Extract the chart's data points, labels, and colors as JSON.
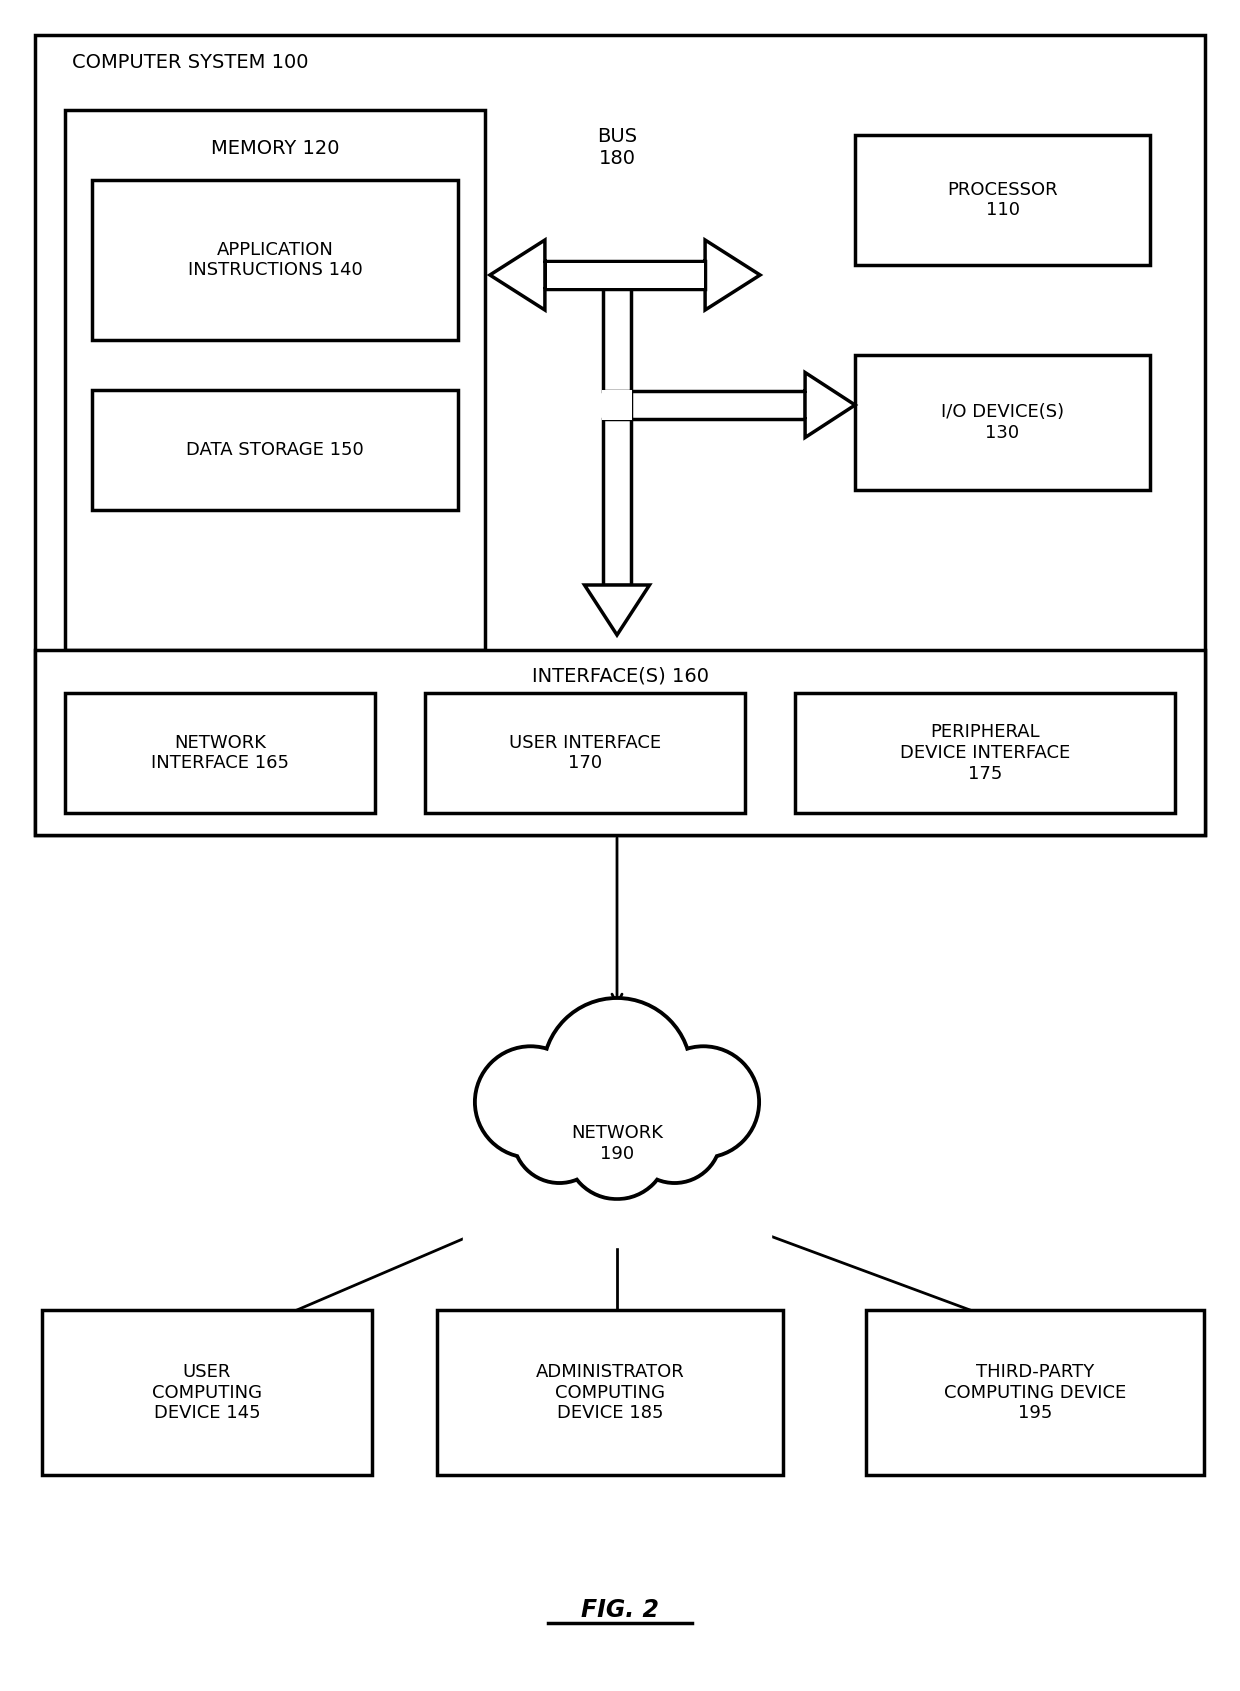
{
  "bg_color": "#ffffff",
  "line_color": "#000000",
  "text_color": "#000000",
  "fig_label": "FIG. 2",
  "computer_system_label": "COMPUTER SYSTEM 100",
  "memory_label": "MEMORY 120",
  "app_instructions_label": "APPLICATION\nINSTRUCTIONS 140",
  "data_storage_label": "DATA STORAGE 150",
  "bus_label": "BUS\n180",
  "processor_label": "PROCESSOR\n110",
  "io_device_label": "I/O DEVICE(S)\n130",
  "interfaces_label": "INTERFACE(S) 160",
  "network_interface_label": "NETWORK\nINTERFACE 165",
  "user_interface_label": "USER INTERFACE\n170",
  "peripheral_label": "PERIPHERAL\nDEVICE INTERFACE\n175",
  "network_label": "NETWORK\n190",
  "user_computing_label": "USER\nCOMPUTING\nDEVICE 145",
  "admin_computing_label": "ADMINISTRATOR\nCOMPUTING\nDEVICE 185",
  "third_party_label": "THIRD-PARTY\nCOMPUTING DEVICE\n195"
}
